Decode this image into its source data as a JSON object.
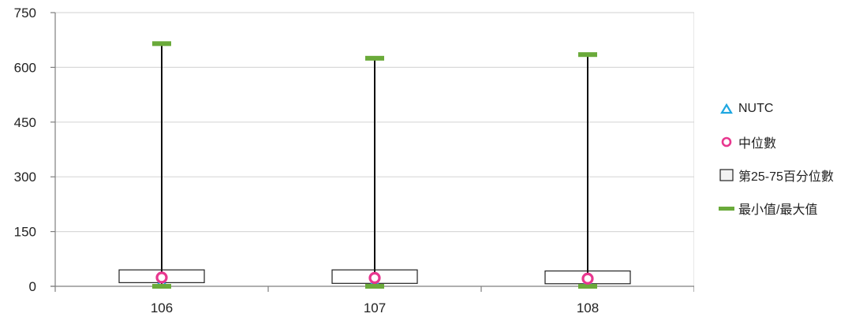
{
  "chart_data": {
    "type": "boxplot",
    "categories": [
      "106",
      "107",
      "108"
    ],
    "y_ticks": [
      "0",
      "150",
      "300",
      "450",
      "600",
      "750"
    ],
    "ylim": [
      0,
      750
    ],
    "grid": "horizontal",
    "legend_position": "right",
    "series": [
      {
        "name": "NUTC",
        "values": [
          0,
          0,
          0
        ]
      },
      {
        "name": "中位數",
        "values": [
          24,
          23,
          21
        ]
      },
      {
        "name": "第25-75百分位數",
        "q1": [
          10,
          8,
          7
        ],
        "q3": [
          45,
          45,
          42
        ]
      },
      {
        "name": "最小值/最大值",
        "min": [
          0,
          0,
          0
        ],
        "max": [
          665,
          625,
          635
        ]
      }
    ],
    "colors": {
      "nutc": "#1ea7e1",
      "median": "#e8378f",
      "box": "#222222",
      "minmax": "#6aaa3a",
      "grid": "#d9d9d9",
      "axis": "#7f7f7f"
    }
  }
}
